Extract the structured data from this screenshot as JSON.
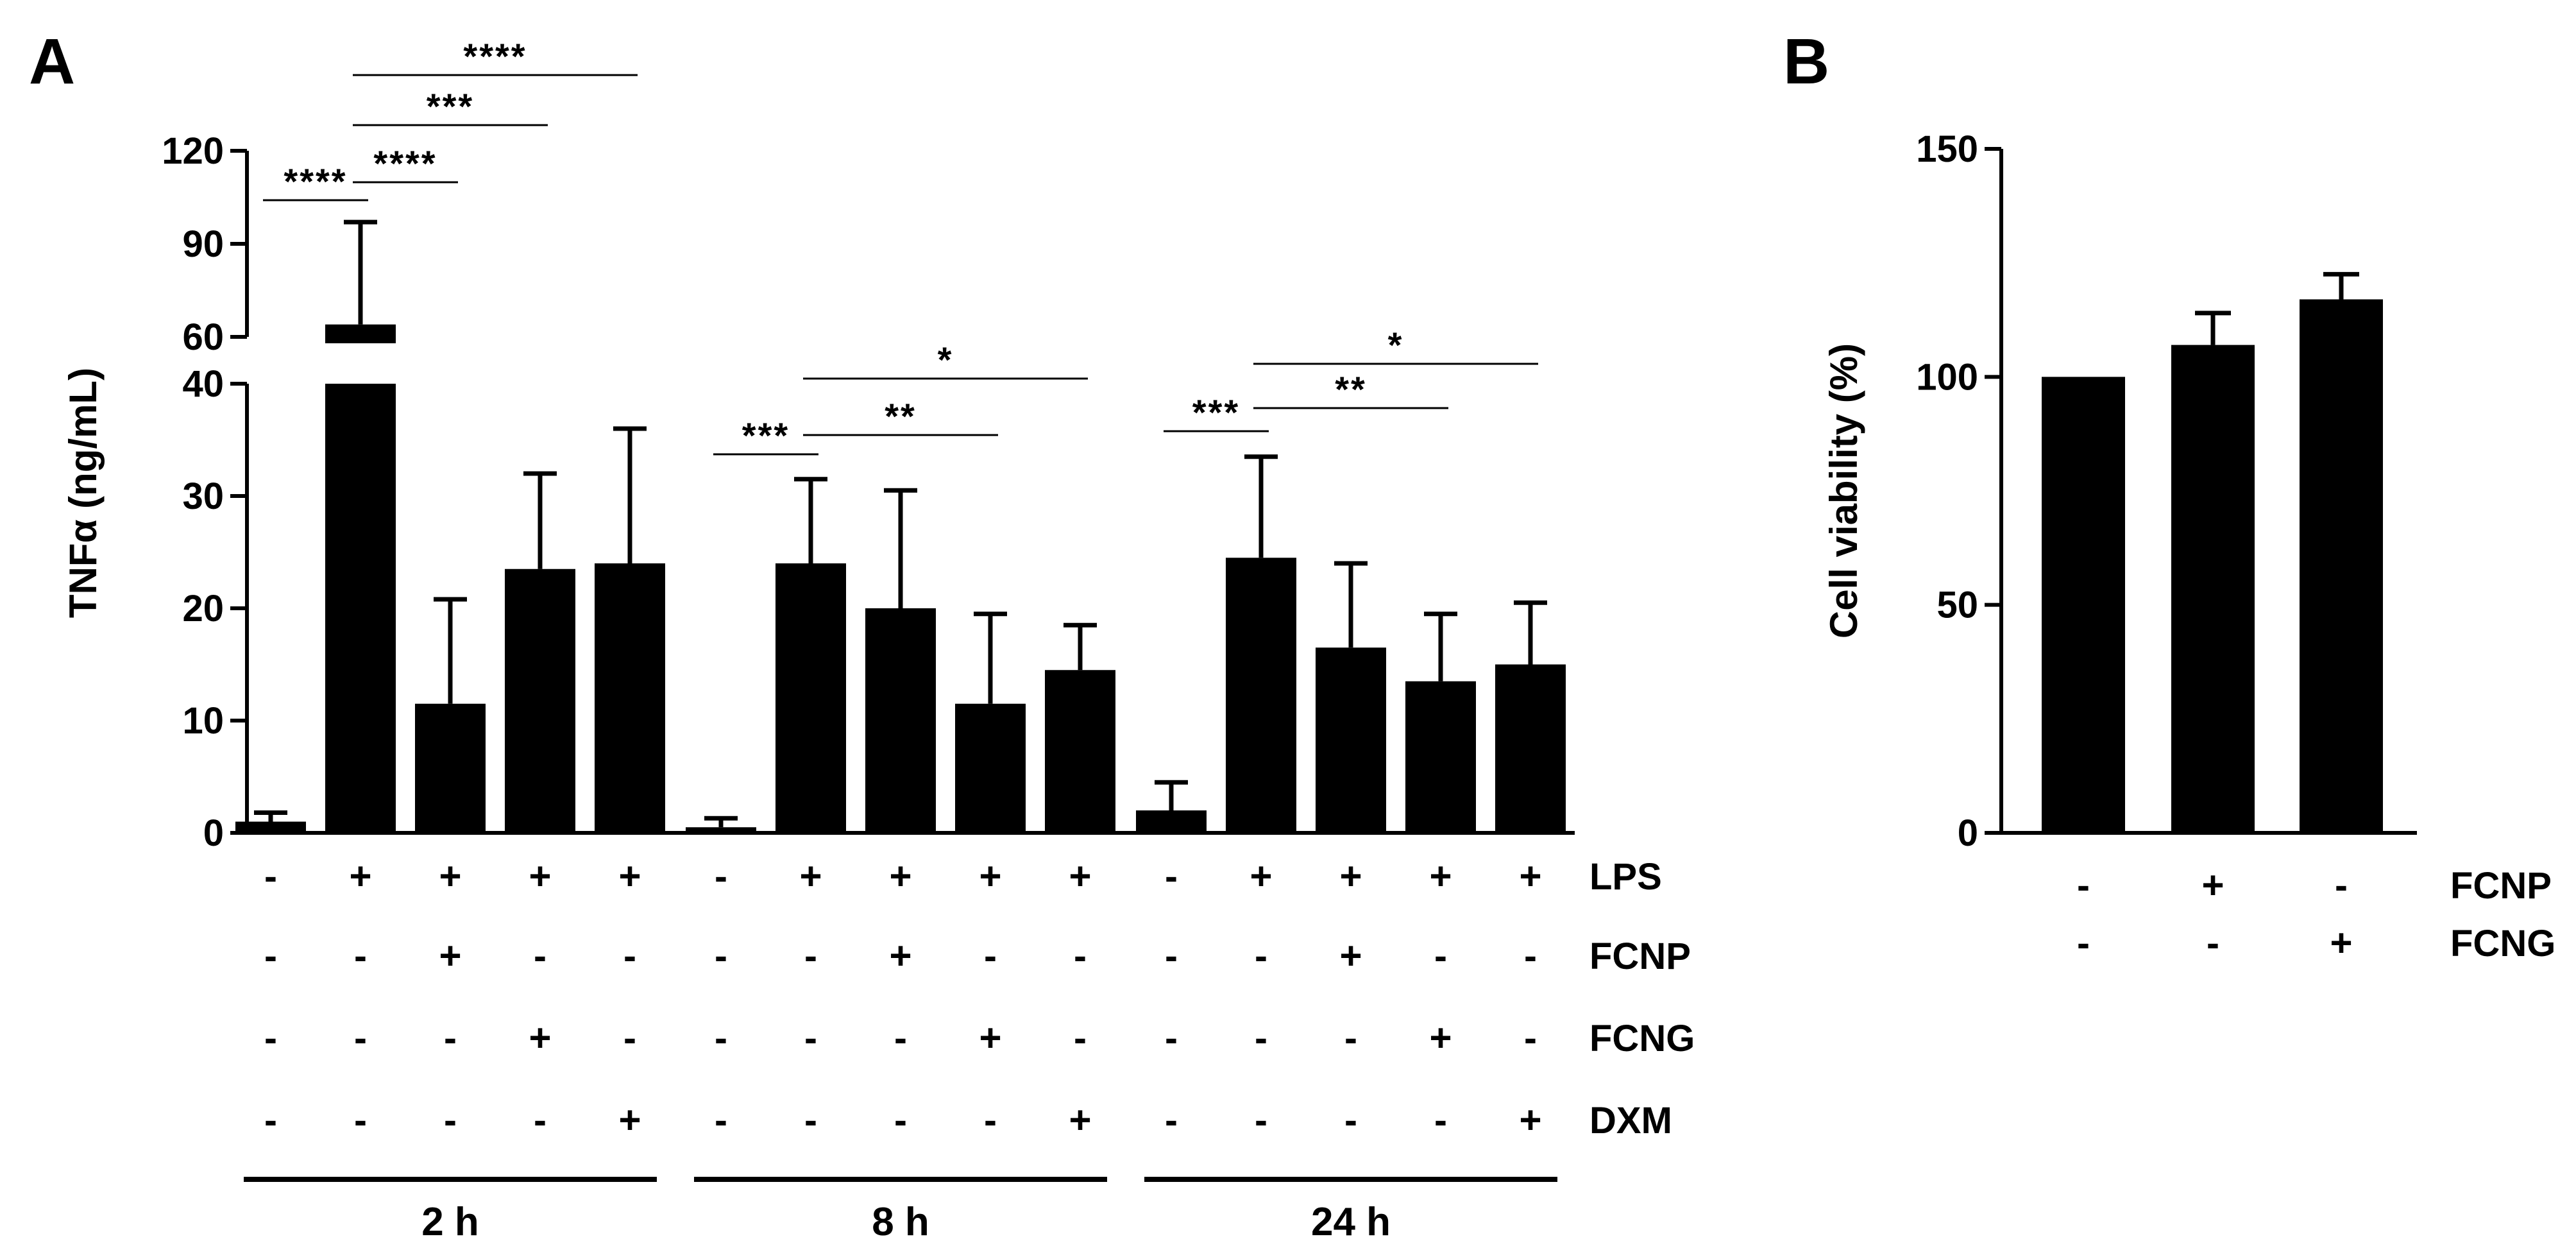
{
  "chart_data": [
    {
      "panel": "A",
      "type": "bar",
      "ylabel": "TNFα (ng/mL)",
      "y_axis_break": {
        "lower": [
          0,
          40
        ],
        "upper": [
          60,
          120
        ]
      },
      "yticks": [
        0,
        10,
        20,
        30,
        40,
        60,
        90,
        120
      ],
      "groups": [
        {
          "label": "2 h",
          "bars": [
            {
              "mean": 1,
              "err": 0.8,
              "LPS": "-",
              "FCNP": "-",
              "FCNG": "-",
              "DXM": "-"
            },
            {
              "mean": 64,
              "err": 33,
              "LPS": "+",
              "FCNP": "-",
              "FCNG": "-",
              "DXM": "-"
            },
            {
              "mean": 11.5,
              "err": 9.3,
              "LPS": "+",
              "FCNP": "+",
              "FCNG": "-",
              "DXM": "-"
            },
            {
              "mean": 23.5,
              "err": 8.5,
              "LPS": "+",
              "FCNP": "-",
              "FCNG": "+",
              "DXM": "-"
            },
            {
              "mean": 24,
              "err": 12,
              "LPS": "+",
              "FCNP": "-",
              "FCNG": "-",
              "DXM": "+"
            }
          ]
        },
        {
          "label": "8 h",
          "bars": [
            {
              "mean": 0.5,
              "err": 0.8,
              "LPS": "-",
              "FCNP": "-",
              "FCNG": "-",
              "DXM": "-"
            },
            {
              "mean": 24,
              "err": 7.5,
              "LPS": "+",
              "FCNP": "-",
              "FCNG": "-",
              "DXM": "-"
            },
            {
              "mean": 20,
              "err": 10.5,
              "LPS": "+",
              "FCNP": "+",
              "FCNG": "-",
              "DXM": "-"
            },
            {
              "mean": 11.5,
              "err": 8,
              "LPS": "+",
              "FCNP": "-",
              "FCNG": "+",
              "DXM": "-"
            },
            {
              "mean": 14.5,
              "err": 4,
              "LPS": "+",
              "FCNP": "-",
              "FCNG": "-",
              "DXM": "+"
            }
          ]
        },
        {
          "label": "24 h",
          "bars": [
            {
              "mean": 2,
              "err": 2.5,
              "LPS": "-",
              "FCNP": "-",
              "FCNG": "-",
              "DXM": "-"
            },
            {
              "mean": 24.5,
              "err": 9,
              "LPS": "+",
              "FCNP": "-",
              "FCNG": "-",
              "DXM": "-"
            },
            {
              "mean": 16.5,
              "err": 7.5,
              "LPS": "+",
              "FCNP": "+",
              "FCNG": "-",
              "DXM": "-"
            },
            {
              "mean": 13.5,
              "err": 6,
              "LPS": "+",
              "FCNP": "-",
              "FCNG": "+",
              "DXM": "-"
            },
            {
              "mean": 15,
              "err": 5.5,
              "LPS": "+",
              "FCNP": "-",
              "FCNG": "-",
              "DXM": "+"
            }
          ]
        }
      ],
      "row_labels": [
        "LPS",
        "FCNP",
        "FCNG",
        "DXM"
      ],
      "significance": [
        {
          "group": 0,
          "from": 0,
          "to": 1,
          "label": "****"
        },
        {
          "group": 0,
          "from": 1,
          "to": 2,
          "label": "****"
        },
        {
          "group": 0,
          "from": 1,
          "to": 3,
          "label": "***"
        },
        {
          "group": 0,
          "from": 1,
          "to": 4,
          "label": "****"
        },
        {
          "group": 1,
          "from": 0,
          "to": 1,
          "label": "***"
        },
        {
          "group": 1,
          "from": 1,
          "to": 3,
          "label": "**"
        },
        {
          "group": 1,
          "from": 1,
          "to": 4,
          "label": "*"
        },
        {
          "group": 2,
          "from": 0,
          "to": 1,
          "label": "***"
        },
        {
          "group": 2,
          "from": 1,
          "to": 3,
          "label": "**"
        },
        {
          "group": 2,
          "from": 1,
          "to": 4,
          "label": "*"
        }
      ]
    },
    {
      "panel": "B",
      "type": "bar",
      "ylabel": "Cell viability (%)",
      "ylim": [
        0,
        150
      ],
      "yticks": [
        0,
        50,
        100,
        150
      ],
      "bars": [
        {
          "mean": 100,
          "err": 0,
          "FCNP": "-",
          "FCNG": "-"
        },
        {
          "mean": 107,
          "err": 7,
          "FCNP": "+",
          "FCNG": "-"
        },
        {
          "mean": 117,
          "err": 5.5,
          "FCNP": "-",
          "FCNG": "+"
        }
      ],
      "row_labels": [
        "FCNP",
        "FCNG"
      ]
    }
  ]
}
